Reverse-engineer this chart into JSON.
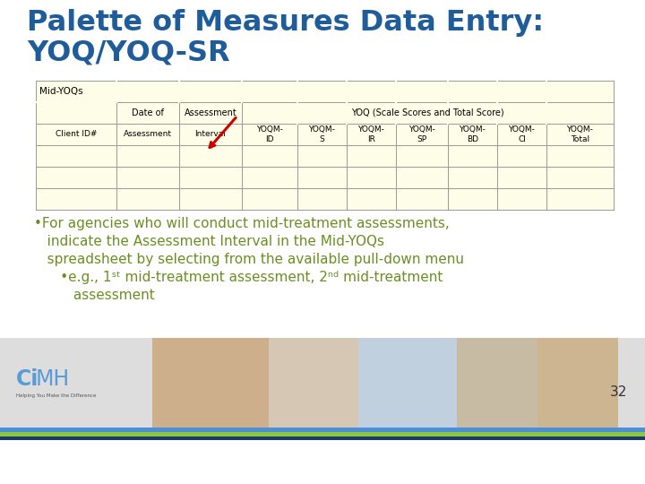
{
  "title_line1": "Palette of Measures Data Entry:",
  "title_line2": "YOQ/YOQ-SR",
  "title_color": "#1F5C9A",
  "bg_color": "#FFFFFF",
  "table_bg": "#FEFEE8",
  "table_border_color": "#AAAAAA",
  "bullet_text_color": "#6B8E23",
  "bullet_lines": [
    "•For agencies who will conduct mid-treatment assessments,",
    "   indicate the Assessment Interval in the Mid-YOQs",
    "   spreadsheet by selecting from the available pull-down menu",
    "      •e.g., 1ˢᵗ mid-treatment assessment, 2ⁿᵈ mid-treatment",
    "         assessment"
  ],
  "page_num": "32",
  "arrow_color": "#CC0000",
  "footer_blue": "#4A90D9",
  "footer_green": "#8DC63F",
  "footer_dark": "#1B3A6B"
}
